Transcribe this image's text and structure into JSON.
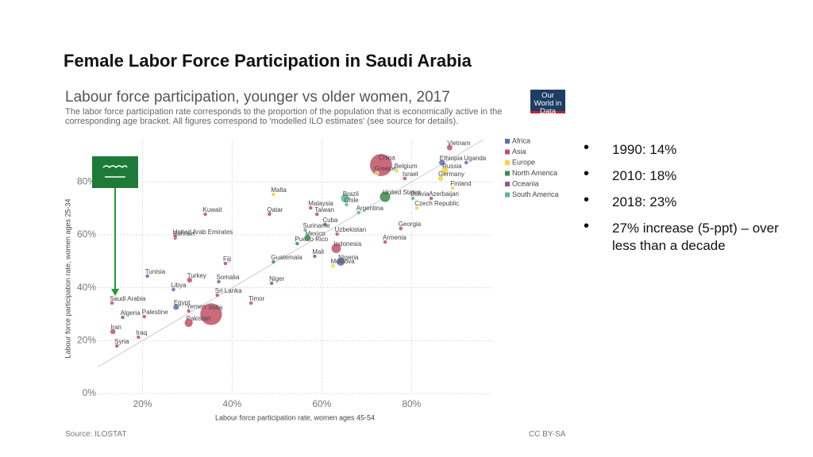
{
  "slide_title": "Female Labor Force Participation in Saudi Arabia",
  "bullets": [
    "1990: 14%",
    "2010: 18%",
    "2018: 23%",
    "27% increase (5-ppt) – over less than a decade"
  ],
  "chart_data": {
    "type": "scatter",
    "title": "Labour force participation, younger vs older women, 2017",
    "subtitle": "The labor force participation rate corresponds to the proportion of the population that is economically active in the corresponding age bracket. All figures correspond to 'modelled ILO estimates' (see source for details).",
    "logo": "Our World in Data",
    "x_label": "Labour force participation rate, women ages 45-54",
    "y_label": "Labour force participation rate, women ages 25-34",
    "source": "Source: ILOSTAT",
    "license": "CC BY-SA",
    "xlim": [
      10,
      98
    ],
    "ylim": [
      0,
      96
    ],
    "xticks": [
      {
        "value": 20,
        "label": "20%"
      },
      {
        "value": 40,
        "label": "40%"
      },
      {
        "value": 60,
        "label": "60%"
      },
      {
        "value": 80,
        "label": "80%"
      }
    ],
    "yticks": [
      {
        "value": 0,
        "label": "0%"
      },
      {
        "value": 20,
        "label": "20%"
      },
      {
        "value": 40,
        "label": "40%"
      },
      {
        "value": 60,
        "label": "60%"
      },
      {
        "value": 80,
        "label": "80%"
      }
    ],
    "grid": true,
    "series": [
      {
        "name": "Africa",
        "color": "#5b6fb0",
        "labels": [
          "Ethiopia",
          "Uganda",
          "Somalia",
          "Algeria",
          "Egypt",
          "Libya",
          "Niger",
          "Nigeria",
          "Mali",
          "Tunisia"
        ],
        "x": [
          86.8,
          92.2,
          37,
          15.6,
          27.5,
          26.9,
          48.8,
          64.2,
          58.4,
          21.1
        ],
        "values": [
          87.3,
          87.3,
          42.3,
          28.8,
          32.7,
          39.3,
          41.7,
          49.8,
          51.9,
          44.4
        ],
        "sizes": [
          105,
          43,
          15,
          41,
          98,
          6,
          21,
          191,
          19,
          11
        ]
      },
      {
        "name": "Asia",
        "color": "#c15065",
        "labels": [
          "China",
          "India",
          "Saudi Arabia",
          "Iran",
          "Syria",
          "Iraq",
          "Palestine",
          "Yemen",
          "Pakistan",
          "Turkey",
          "Bahrain",
          "United Arab Emirates",
          "Kuwait",
          "Qatar",
          "Malaysia",
          "Taiwan",
          "Sri Lanka",
          "Timor",
          "Georgia",
          "Armenia",
          "Uzbekistan",
          "Indonesia",
          "Azerbaijan",
          "Israel",
          "Vietnam"
        ],
        "x": [
          73.2,
          35.3,
          13.2,
          13.4,
          14.3,
          19.1,
          20.4,
          30.3,
          30.3,
          30.5,
          27.3,
          27.3,
          34,
          48.3,
          57.5,
          58.9,
          36.7,
          44.2,
          77.6,
          74.1,
          63.4,
          63.2,
          84.4,
          78.5,
          88.5
        ],
        "values": [
          86.4,
          30,
          34.2,
          23.4,
          18,
          21.3,
          29.1,
          31.2,
          26.7,
          42.9,
          58.8,
          59.5,
          67.8,
          67.8,
          70.2,
          67.8,
          37.2,
          34.2,
          62.4,
          57.3,
          60.3,
          54.9,
          73.8,
          81.3,
          93
        ],
        "sizes": [
          1390,
          1340,
          33,
          81,
          18,
          38,
          5,
          28,
          197,
          81,
          1.5,
          9.5,
          4,
          2.6,
          32,
          24,
          21,
          1.3,
          3.7,
          3,
          32,
          264,
          10,
          8.7,
          95
        ]
      },
      {
        "name": "Europe",
        "color": "#f5d33d",
        "labels": [
          "Greece",
          "Belgium",
          "Finland",
          "Czech Republic",
          "Malta",
          "Russia",
          "Germany",
          "Moldova"
        ],
        "x": [
          72.3,
          76.7,
          89.2,
          81.2,
          49.2,
          87.4,
          86.5,
          62.5
        ],
        "values": [
          83.4,
          84.3,
          77.7,
          70.2,
          75.3,
          84.3,
          81.3,
          48.3
        ],
        "sizes": [
          11,
          11,
          5.5,
          10.6,
          0.5,
          145,
          82,
          3.5
        ]
      },
      {
        "name": "North America",
        "color": "#3c8a4f",
        "labels": [
          "United States",
          "Puerto Rico",
          "Mexico",
          "Guatemala",
          "Cuba"
        ],
        "x": [
          74.1,
          54.5,
          56.8,
          49.2,
          60.7
        ],
        "values": [
          74.4,
          56.7,
          58.8,
          49.8,
          63.9
        ],
        "sizes": [
          325,
          3.3,
          129,
          17,
          11
        ]
      },
      {
        "name": "Oceania",
        "color": "#9b4ea3",
        "labels": [
          "Fiji"
        ],
        "x": [
          38.5
        ],
        "values": [
          49.2
        ],
        "sizes": [
          0.9
        ]
      },
      {
        "name": "South America",
        "color": "#5fb597",
        "labels": [
          "Brazil",
          "Chile",
          "Argentina",
          "Bolivia",
          "Suriname"
        ],
        "x": [
          65.2,
          65.5,
          68.2,
          80.3,
          56.3
        ],
        "values": [
          73.8,
          71.4,
          68.4,
          73.8,
          61.8
        ],
        "sizes": [
          209,
          18,
          44,
          11,
          0.6
        ]
      }
    ]
  }
}
